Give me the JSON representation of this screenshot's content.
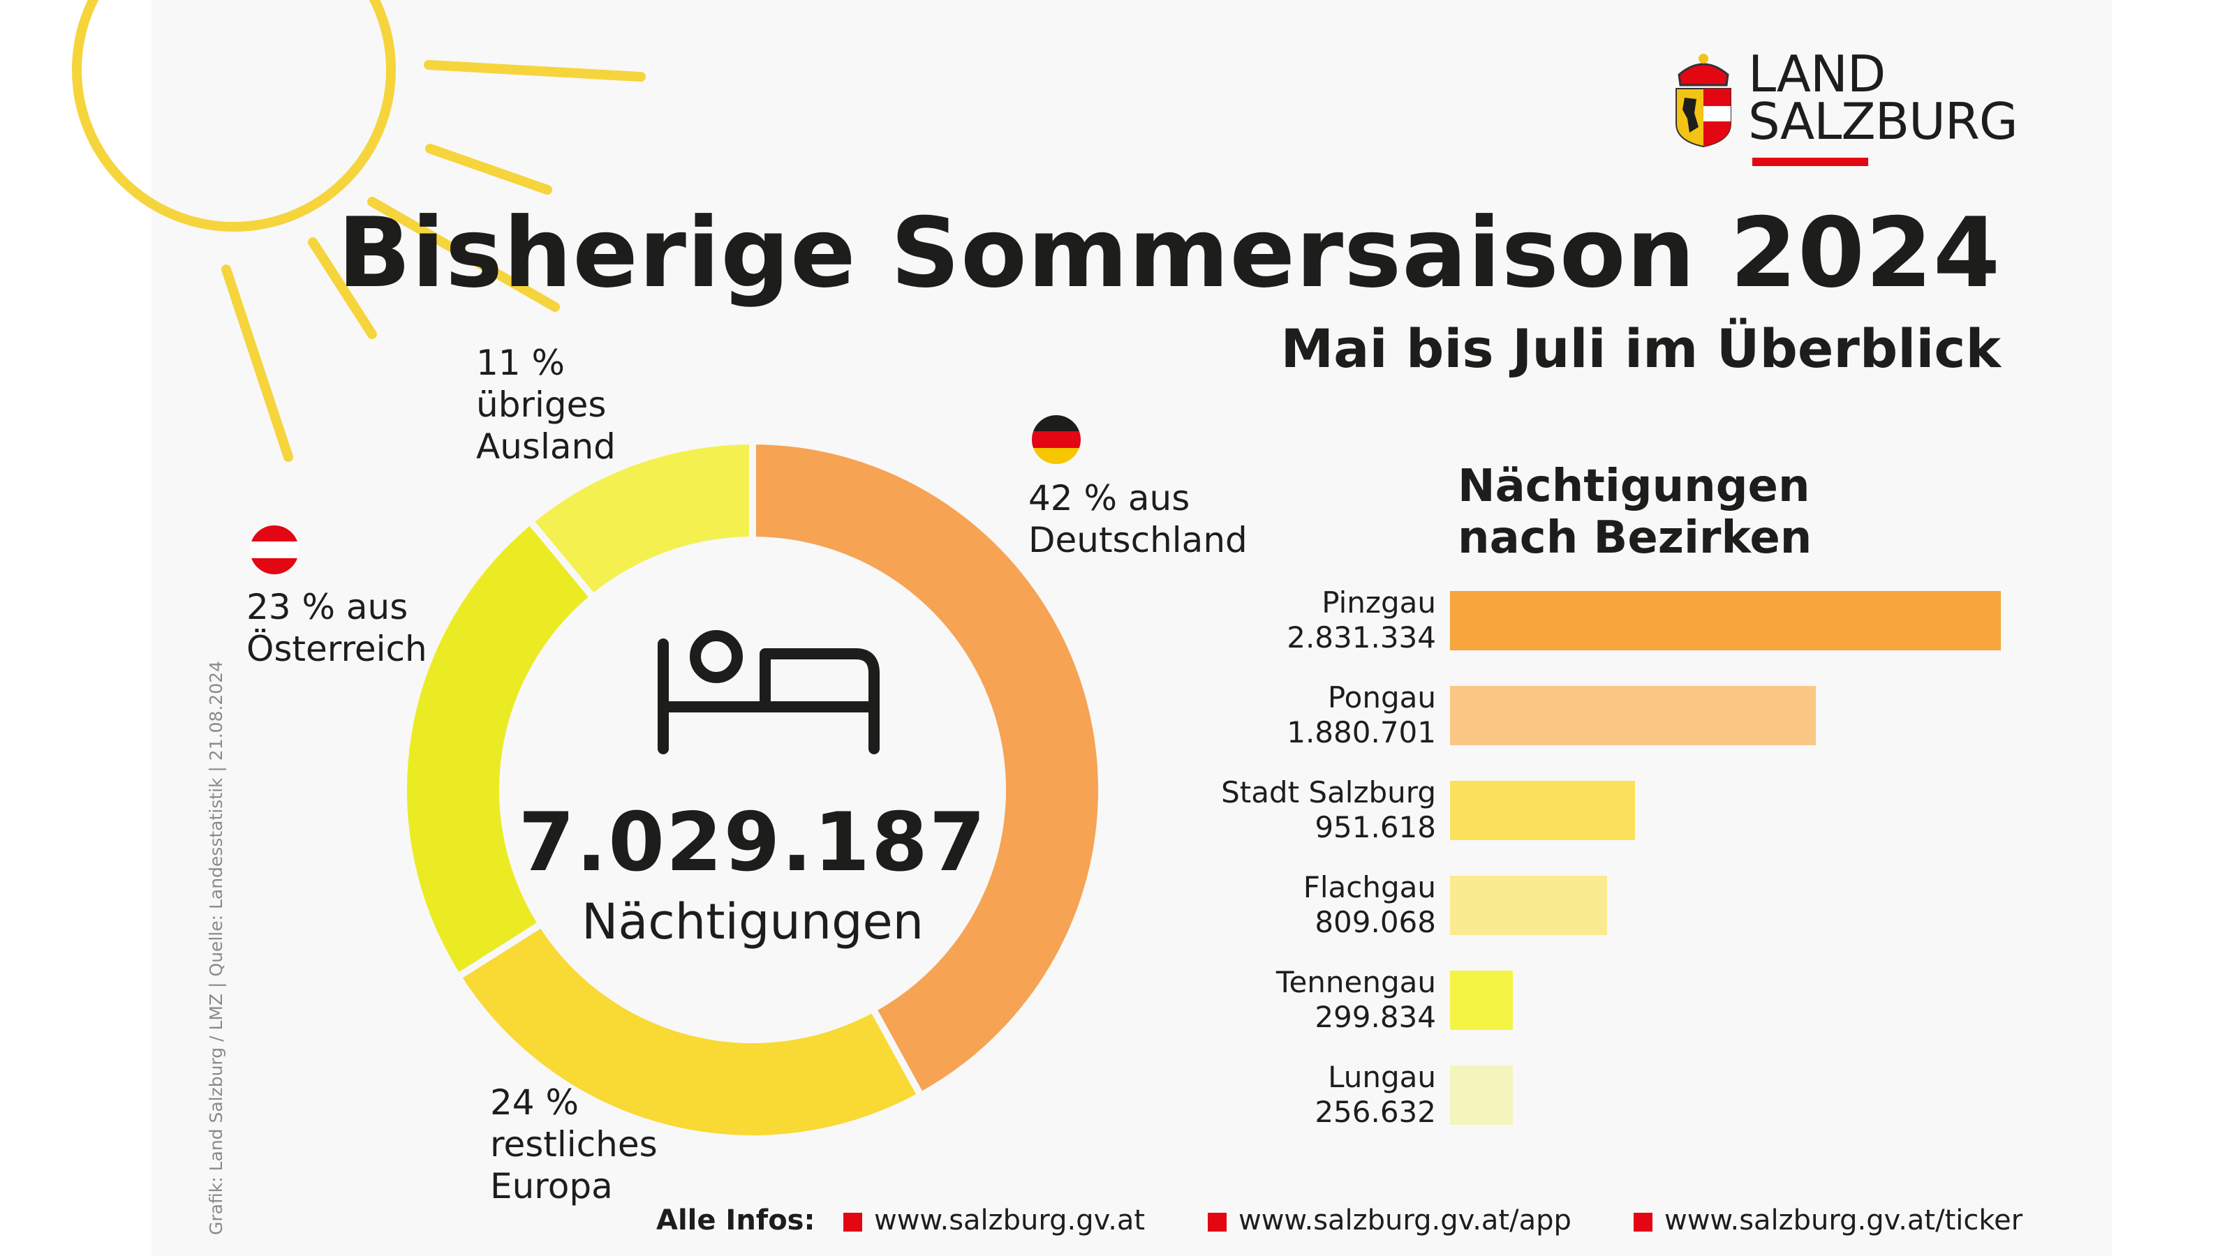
{
  "header": {
    "title": "Bisherige Sommersaison 2024",
    "subtitle": "Mai bis Juli im Überblick",
    "logo": {
      "line1": "LAND",
      "line2": "SALZBURG"
    }
  },
  "center": {
    "total": "7.029.187",
    "unit": "Nächtigungen",
    "icon": "bed-icon"
  },
  "donut_labels": {
    "de": [
      "42 % aus",
      "Deutschland"
    ],
    "at": [
      "23 % aus",
      "Österreich"
    ],
    "eu": [
      "24 %",
      "restliches",
      "Europa"
    ],
    "other": [
      "11 %",
      "übriges",
      "Ausland"
    ]
  },
  "bezirke_title": [
    "Nächtigungen",
    "nach Bezirken"
  ],
  "chart_data": [
    {
      "type": "pie",
      "variant": "donut",
      "categories": [
        "aus Deutschland",
        "restliches Europa",
        "aus Österreich",
        "übriges Ausland"
      ],
      "values": [
        42,
        24,
        23,
        11
      ],
      "unit": "%",
      "colors": [
        "#f6a354",
        "#f9d934",
        "#ebeb24",
        "#f4f050"
      ]
    },
    {
      "type": "bar",
      "orientation": "horizontal",
      "title": "Nächtigungen nach Bezirken",
      "categories": [
        "Pinzgau",
        "Pongau",
        "Stadt Salzburg",
        "Flachgau",
        "Tennengau",
        "Lungau"
      ],
      "value_labels": [
        "2.831.334",
        "1.880.701",
        "951.618",
        "809.068",
        "299.834",
        "256.632"
      ],
      "values": [
        2831334,
        1880701,
        951618,
        809068,
        299834,
        256632
      ],
      "colors": [
        "#f8a53e",
        "#fbc785",
        "#fbe15c",
        "#fbeb90",
        "#f4f444",
        "#f4f4bc"
      ]
    }
  ],
  "footer": {
    "label": "Alle Infos:",
    "links": [
      "www.salzburg.gv.at",
      "www.salzburg.gv.at/app",
      "www.salzburg.gv.at/ticker"
    ]
  },
  "credit": "Grafik: Land Salzburg / LMZ | Quelle: Landesstatistik | 21.08.2024",
  "colors": {
    "sun": "#f6d43c",
    "accent_red": "#e30613",
    "text": "#1d1d1b"
  }
}
